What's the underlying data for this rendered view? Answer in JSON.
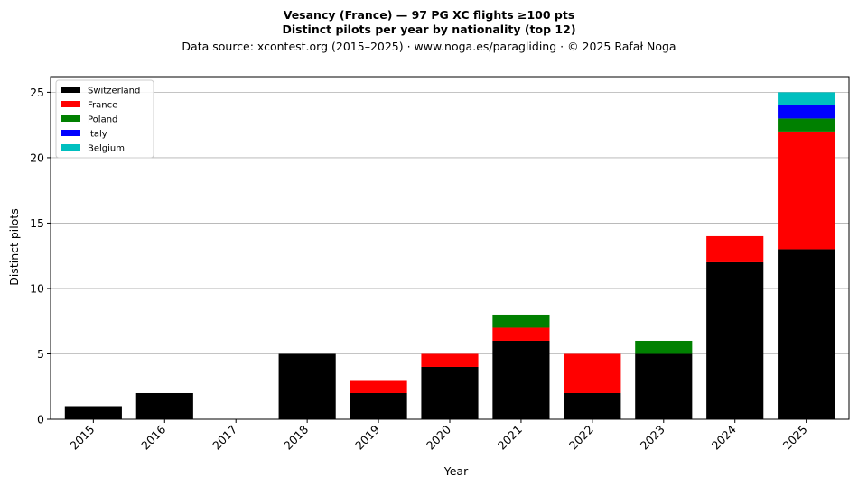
{
  "chart_data": {
    "type": "bar",
    "stacked": true,
    "title_line1": "Vesancy (France)  —  97 PG XC flights ≥100 pts",
    "title_line2": "Distinct pilots per year by nationality (top 12)",
    "subtitle": "Data source: xcontest.org (2015–2025)  ·  www.noga.es/paragliding  ·  © 2025 Rafał Noga",
    "xlabel": "Year",
    "ylabel": "Distinct pilots",
    "ylim": [
      0,
      26.2
    ],
    "yticks": [
      0,
      5,
      10,
      15,
      20,
      25
    ],
    "grid": "y",
    "legend_position": "top-left",
    "categories": [
      "2015",
      "2016",
      "2017",
      "2018",
      "2019",
      "2020",
      "2021",
      "2022",
      "2023",
      "2024",
      "2025"
    ],
    "series": [
      {
        "name": "Switzerland",
        "color": "#000000",
        "values": [
          1,
          2,
          0,
          5,
          2,
          4,
          6,
          2,
          5,
          12,
          13
        ]
      },
      {
        "name": "France",
        "color": "#ff0000",
        "values": [
          0,
          0,
          0,
          0,
          1,
          1,
          1,
          3,
          0,
          2,
          9
        ]
      },
      {
        "name": "Poland",
        "color": "#008000",
        "values": [
          0,
          0,
          0,
          0,
          0,
          0,
          1,
          0,
          1,
          0,
          1
        ]
      },
      {
        "name": "Italy",
        "color": "#0000ff",
        "values": [
          0,
          0,
          0,
          0,
          0,
          0,
          0,
          0,
          0,
          0,
          1
        ]
      },
      {
        "name": "Belgium",
        "color": "#00bfbf",
        "values": [
          0,
          0,
          0,
          0,
          0,
          0,
          0,
          0,
          0,
          0,
          1
        ]
      }
    ]
  }
}
